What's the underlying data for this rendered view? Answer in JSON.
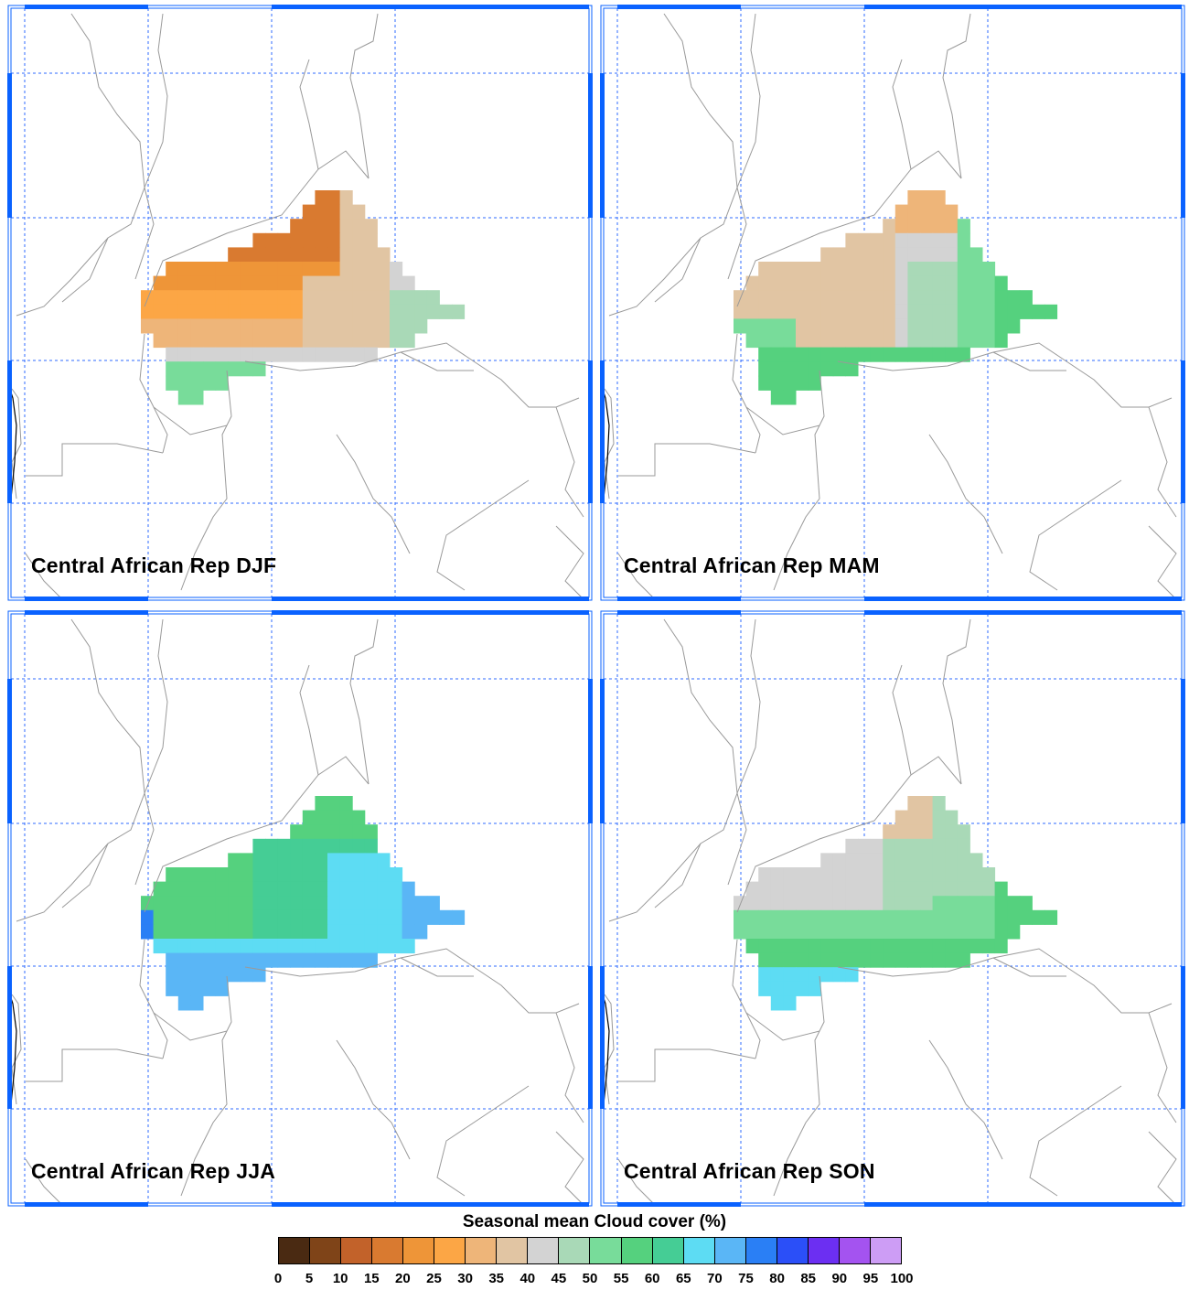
{
  "panels": [
    {
      "title": "Central African Rep DJF",
      "season": "DJF"
    },
    {
      "title": "Central African Rep MAM",
      "season": "MAM"
    },
    {
      "title": "Central African Rep JJA",
      "season": "JJA"
    },
    {
      "title": "Central African Rep SON",
      "season": "SON"
    }
  ],
  "legend": {
    "title": "Seasonal mean Cloud cover (%)",
    "ticks": [
      "0",
      "5",
      "10",
      "15",
      "20",
      "25",
      "30",
      "35",
      "40",
      "45",
      "50",
      "55",
      "60",
      "65",
      "70",
      "75",
      "80",
      "85",
      "90",
      "95",
      "100"
    ],
    "colors": [
      "#4a2a12",
      "#7f4418",
      "#c2622a",
      "#d97a30",
      "#ee9538",
      "#fca645",
      "#eeb579",
      "#e1c5a3",
      "#d3d3d3",
      "#a9d9b7",
      "#78dc9a",
      "#55d17e",
      "#45cd95",
      "#5ddcf3",
      "#5ab6f6",
      "#2a7ff5",
      "#2b4ff8",
      "#6c2ff2",
      "#a453f0",
      "#cd9df5"
    ]
  },
  "colors": {
    "frame": "#0a62ff",
    "grid": "#2f6bff",
    "border": "#9a9a9a"
  }
}
